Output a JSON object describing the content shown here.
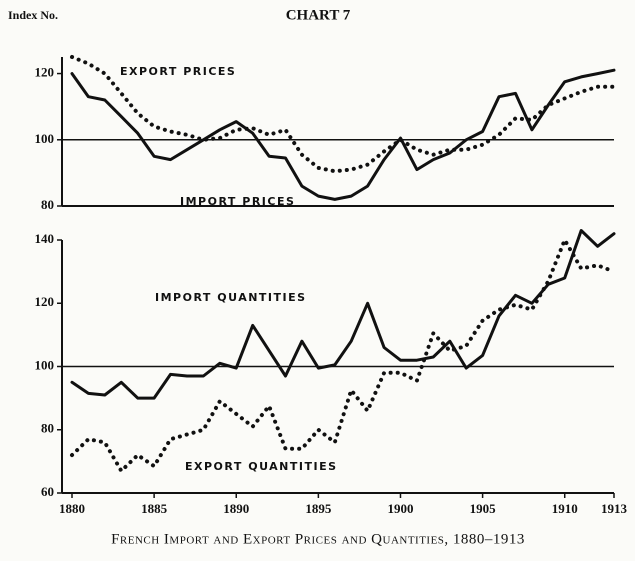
{
  "title": "CHART 7",
  "y_label": "Index No.",
  "caption": "French Import and Export Prices and Quantities, 1880–1913",
  "chart_data": [
    {
      "type": "line",
      "ylim": [
        80,
        125
      ],
      "yticks": [
        80,
        100,
        120
      ],
      "reference_line": 100,
      "x": [
        1880,
        1881,
        1882,
        1883,
        1884,
        1885,
        1886,
        1887,
        1888,
        1889,
        1890,
        1891,
        1892,
        1893,
        1894,
        1895,
        1896,
        1897,
        1898,
        1899,
        1900,
        1901,
        1902,
        1903,
        1904,
        1905,
        1906,
        1907,
        1908,
        1909,
        1910,
        1911,
        1912,
        1913
      ],
      "series": [
        {
          "name": "IMPORT PRICES",
          "color": "#111111",
          "style": "solid",
          "values": [
            120,
            113,
            112,
            107,
            102,
            95,
            94,
            97,
            100,
            103,
            105.5,
            102,
            95,
            94.5,
            86,
            83,
            82,
            83,
            86,
            94,
            100.5,
            91,
            94,
            96,
            100,
            102.5,
            113,
            114,
            103,
            110.5,
            117.5,
            119,
            120,
            121
          ]
        },
        {
          "name": "EXPORT PRICES",
          "color": "#111111",
          "style": "dotted",
          "values": [
            125,
            123,
            120,
            114,
            108,
            104,
            102.5,
            101.5,
            100,
            100.5,
            103,
            103.5,
            101.5,
            103,
            95.5,
            91.5,
            90.5,
            91,
            92.5,
            96.5,
            100,
            97,
            95.5,
            97,
            97,
            98.5,
            101.5,
            106.5,
            106,
            110.5,
            112.5,
            114.5,
            116,
            116
          ]
        }
      ]
    },
    {
      "type": "line",
      "ylim": [
        60,
        140
      ],
      "yticks": [
        60,
        80,
        100,
        120,
        140
      ],
      "reference_line": 100,
      "xticks": [
        1880,
        1885,
        1890,
        1895,
        1900,
        1905,
        1910,
        1913
      ],
      "x": [
        1880,
        1881,
        1882,
        1883,
        1884,
        1885,
        1886,
        1887,
        1888,
        1889,
        1890,
        1891,
        1892,
        1893,
        1894,
        1895,
        1896,
        1897,
        1898,
        1899,
        1900,
        1901,
        1902,
        1903,
        1904,
        1905,
        1906,
        1907,
        1908,
        1909,
        1910,
        1911,
        1912,
        1913
      ],
      "series": [
        {
          "name": "IMPORT QUANTITIES",
          "color": "#111111",
          "style": "solid",
          "values": [
            95,
            91.5,
            91,
            95,
            90,
            90,
            97.5,
            97,
            97,
            101,
            99.5,
            113,
            105,
            97,
            108,
            99.5,
            100.5,
            108,
            120,
            106,
            102,
            102,
            103,
            108,
            99.5,
            103.5,
            116,
            122.5,
            120,
            126,
            128,
            143,
            138,
            142
          ]
        },
        {
          "name": "EXPORT QUANTITIES",
          "color": "#111111",
          "style": "dotted",
          "values": [
            72,
            77,
            76,
            67,
            72,
            68.5,
            77,
            78.5,
            80,
            89,
            85,
            81,
            87.5,
            74,
            74,
            80,
            76,
            92.5,
            86,
            98,
            98,
            95.5,
            110.5,
            105,
            106.5,
            114.5,
            118,
            119.5,
            118,
            127,
            140,
            131,
            132,
            130
          ]
        }
      ]
    }
  ]
}
